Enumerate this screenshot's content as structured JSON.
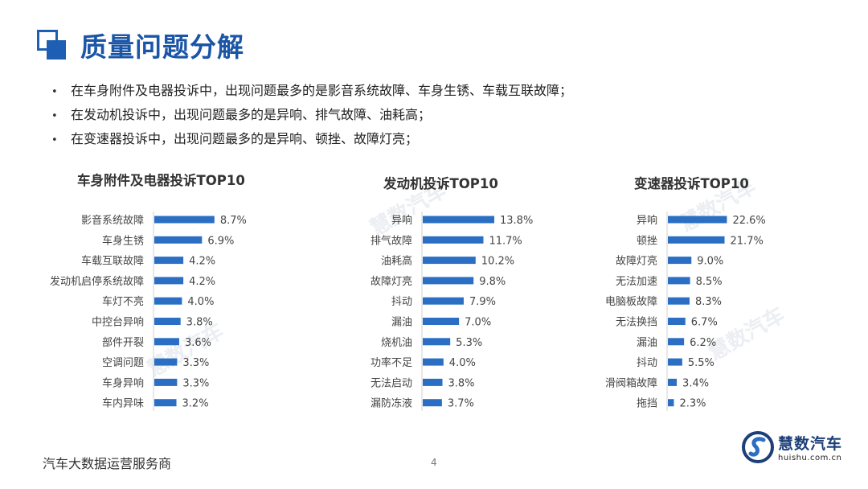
{
  "page": {
    "title": "质量问题分解",
    "bullet_symbol": "•",
    "bullets": [
      "在车身附件及电器投诉中，出现问题最多的是影音系统故障、车身生锈、车载互联故障；",
      "在发动机投诉中，出现问题最多的是异响、排气故障、油耗高；",
      "在变速器投诉中，出现问题最多的是异响、顿挫、故障灯亮；"
    ],
    "footer_text": "汽车大数据运营服务商",
    "page_number": "4",
    "watermark": "慧数汽车",
    "logo": {
      "name": "慧数汽车",
      "url": "huishu.com.cn"
    }
  },
  "colors": {
    "accent": "#1e5fb3",
    "bar": "#2a6fc4",
    "title": "#1b55a6"
  },
  "chart_data": [
    {
      "type": "bar",
      "orientation": "horizontal",
      "title": "车身附件及电器投诉TOP10",
      "categories": [
        "影音系统故障",
        "车身生锈",
        "车载互联故障",
        "发动机启停系统故障",
        "车灯不亮",
        "中控台异响",
        "部件开裂",
        "空调问题",
        "车身异响",
        "车内异味"
      ],
      "values": [
        8.7,
        6.9,
        4.2,
        4.2,
        4.0,
        3.8,
        3.6,
        3.3,
        3.3,
        3.2
      ],
      "labels": [
        "8.7%",
        "6.9%",
        "4.2%",
        "4.2%",
        "4.0%",
        "3.8%",
        "3.6%",
        "3.3%",
        "3.3%",
        "3.2%"
      ],
      "xlim": [
        0,
        10
      ]
    },
    {
      "type": "bar",
      "orientation": "horizontal",
      "title": "发动机投诉TOP10",
      "categories": [
        "异响",
        "排气故障",
        "油耗高",
        "故障灯亮",
        "抖动",
        "漏油",
        "烧机油",
        "功率不足",
        "无法启动",
        "漏防冻液"
      ],
      "values": [
        13.8,
        11.7,
        10.2,
        9.8,
        7.9,
        7.0,
        5.3,
        4.0,
        3.8,
        3.7
      ],
      "labels": [
        "13.8%",
        "11.7%",
        "10.2%",
        "9.8%",
        "7.9%",
        "7.0%",
        "5.3%",
        "4.0%",
        "3.8%",
        "3.7%"
      ],
      "xlim": [
        0,
        15
      ]
    },
    {
      "type": "bar",
      "orientation": "horizontal",
      "title": "变速器投诉TOP10",
      "categories": [
        "异响",
        "顿挫",
        "故障灯亮",
        "无法加速",
        "电脑板故障",
        "无法换挡",
        "漏油",
        "抖动",
        "滑阀箱故障",
        "拖挡"
      ],
      "values": [
        22.6,
        21.7,
        9.0,
        8.5,
        8.3,
        6.7,
        6.2,
        5.5,
        3.4,
        2.3
      ],
      "labels": [
        "22.6%",
        "21.7%",
        "9.0%",
        "8.5%",
        "8.3%",
        "6.7%",
        "6.2%",
        "5.5%",
        "3.4%",
        "2.3%"
      ],
      "xlim": [
        0,
        24
      ]
    }
  ]
}
